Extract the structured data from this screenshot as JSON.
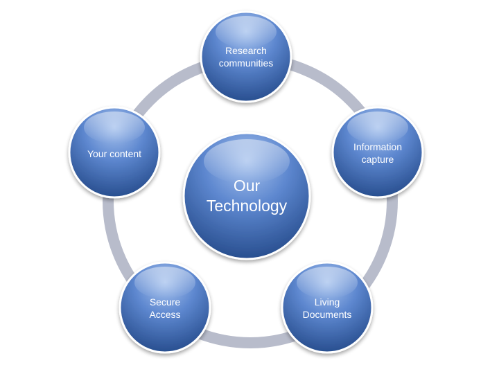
{
  "diagram": {
    "center": {
      "lines": [
        "Our",
        "Technology"
      ]
    },
    "nodes": [
      {
        "id": "research-communities",
        "lines": [
          "Research",
          "communities"
        ]
      },
      {
        "id": "information-capture",
        "lines": [
          "Information",
          "capture"
        ]
      },
      {
        "id": "living-documents",
        "lines": [
          "Living",
          "Documents"
        ]
      },
      {
        "id": "secure-access",
        "lines": [
          "Secure",
          "Access"
        ]
      },
      {
        "id": "your-content",
        "lines": [
          "Your content"
        ]
      }
    ],
    "colors": {
      "ring": "#b8bccb",
      "node_light": "#8fb0e4",
      "node_mid": "#4c78c2",
      "node_dark": "#2a4f8f",
      "node_border": "#ffffff",
      "text": "#ffffff"
    }
  }
}
